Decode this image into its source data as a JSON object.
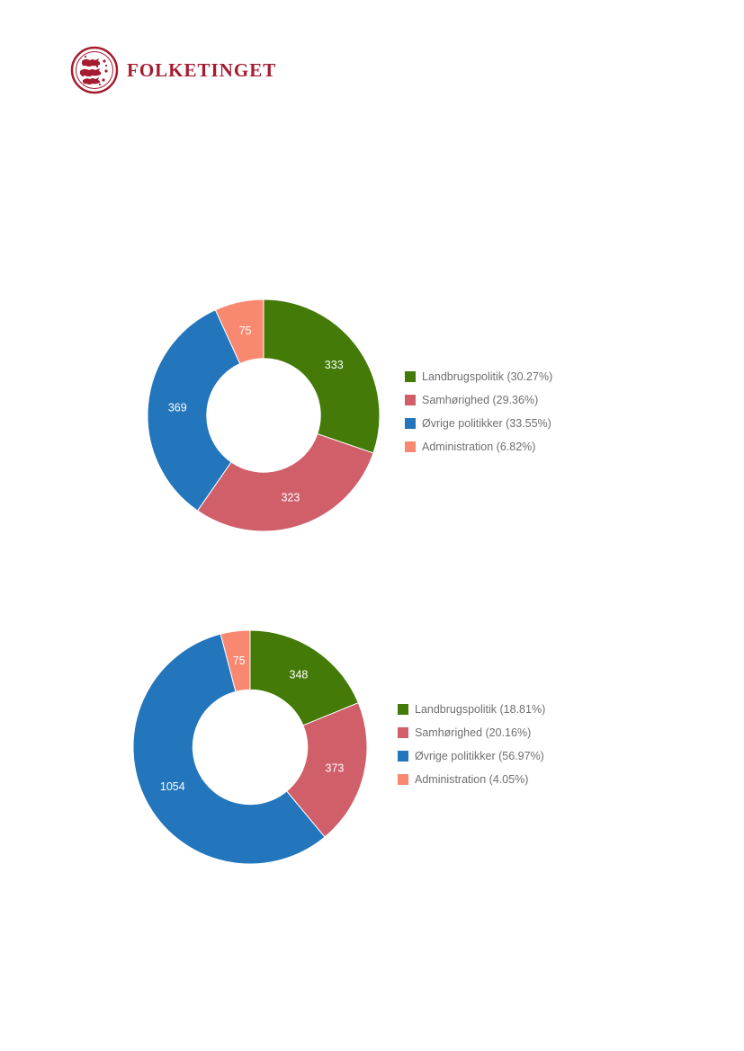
{
  "header": {
    "logo_text": "FOLKETINGET",
    "logo_icon": "coat-of-arms-lions-icon",
    "brand_color": "#a51c30"
  },
  "chart_data": [
    {
      "type": "pie",
      "donut": true,
      "categories": [
        "Landbrugspolitik",
        "Samhørighed",
        "Øvrige politikker",
        "Administration"
      ],
      "values": [
        333,
        323,
        369,
        75
      ],
      "slice_labels": [
        "333",
        "323",
        "369",
        "75"
      ],
      "legend_labels": [
        "Landbrugspolitik (30.27%)",
        "Samhørighed (29.36%)",
        "Øvrige politikker (33.55%)",
        "Administration (6.82%)"
      ],
      "colors": [
        "#437a08",
        "#d05f69",
        "#2375bc",
        "#f98870"
      ],
      "legend_position": "right"
    },
    {
      "type": "pie",
      "donut": true,
      "categories": [
        "Landbrugspolitik",
        "Samhørighed",
        "Øvrige politikker",
        "Administration"
      ],
      "values": [
        348,
        373,
        1054,
        75
      ],
      "slice_labels": [
        "348",
        "373",
        "1054",
        "75"
      ],
      "legend_labels": [
        "Landbrugspolitik (18.81%)",
        "Samhørighed (20.16%)",
        "Øvrige politikker (56.97%)",
        "Administration (4.05%)"
      ],
      "colors": [
        "#437a08",
        "#d05f69",
        "#2375bc",
        "#f98870"
      ],
      "legend_position": "right"
    }
  ]
}
